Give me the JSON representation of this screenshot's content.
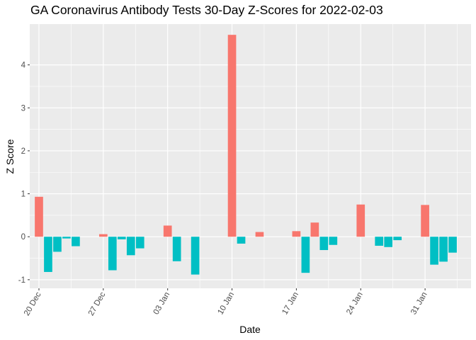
{
  "chart_data": {
    "type": "bar",
    "title": "GA Coronavirus Antibody Tests 30-Day Z-Scores for 2022-02-03",
    "xlabel": "Date",
    "ylabel": "Z Score",
    "ylim": [
      -1.2,
      4.95
    ],
    "xlim": [
      "2021-12-19",
      "2022-02-05"
    ],
    "y_ticks": [
      -1,
      0,
      1,
      2,
      3,
      4
    ],
    "y_tick_labels": [
      "-1",
      "0",
      "1",
      "2",
      "3",
      "4"
    ],
    "x_ticks": [
      "2021-12-20",
      "2021-12-27",
      "2022-01-03",
      "2022-01-10",
      "2022-01-17",
      "2022-01-24",
      "2022-01-31"
    ],
    "x_tick_labels": [
      "20 Dec",
      "27 Dec",
      "03 Jan",
      "10 Jan",
      "17 Jan",
      "24 Jan",
      "31 Jan"
    ],
    "grid": true,
    "legend": "none",
    "colors": {
      "positive": "#F8766D",
      "negative": "#00BFC4",
      "panel": "#EBEBEB",
      "grid": "#FFFFFF"
    },
    "x": [
      "2021-12-20",
      "2021-12-21",
      "2021-12-22",
      "2021-12-23",
      "2021-12-24",
      "2021-12-27",
      "2021-12-28",
      "2021-12-29",
      "2021-12-30",
      "2021-12-31",
      "2022-01-03",
      "2022-01-04",
      "2022-01-06",
      "2022-01-10",
      "2022-01-11",
      "2022-01-13",
      "2022-01-17",
      "2022-01-18",
      "2022-01-19",
      "2022-01-20",
      "2022-01-21",
      "2022-01-24",
      "2022-01-26",
      "2022-01-27",
      "2022-01-28",
      "2022-01-31",
      "2022-02-01",
      "2022-02-02",
      "2022-02-03"
    ],
    "values": [
      0.93,
      -0.82,
      -0.35,
      -0.04,
      -0.22,
      0.06,
      -0.78,
      -0.06,
      -0.43,
      -0.27,
      0.26,
      -0.57,
      -0.88,
      4.7,
      -0.16,
      0.11,
      0.13,
      -0.84,
      0.33,
      -0.31,
      -0.19,
      0.75,
      -0.21,
      -0.24,
      -0.08,
      0.74,
      -0.65,
      -0.58,
      -0.37
    ]
  }
}
